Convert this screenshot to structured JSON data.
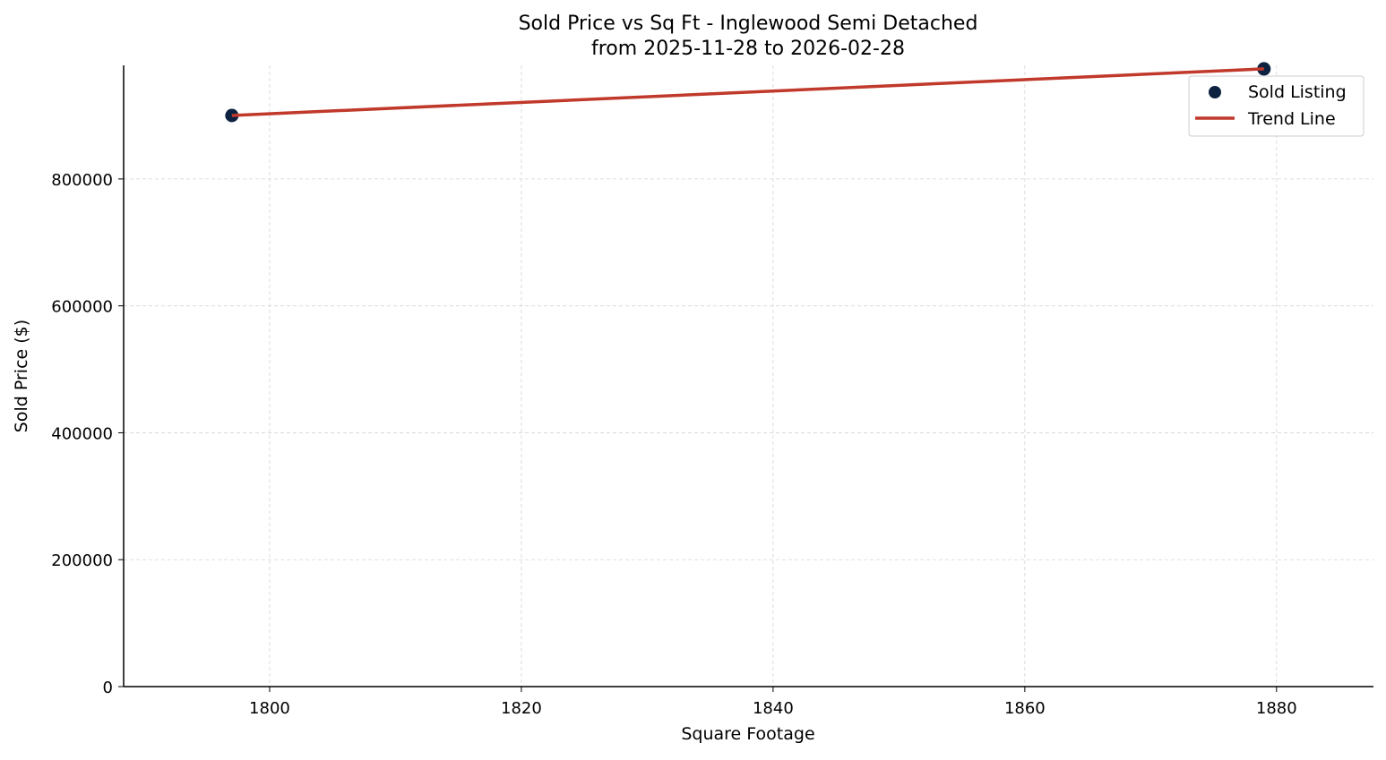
{
  "chart_data": {
    "type": "scatter",
    "title": "Sold Price vs Sq Ft - Inglewood Semi Detached",
    "subtitle": "from 2025-11-28 to 2026-02-28",
    "xlabel": "Square Footage",
    "ylabel": "Sold Price ($)",
    "xlim": [
      1788.4,
      1887.7
    ],
    "ylim": [
      0,
      979000
    ],
    "xticks": [
      1800,
      1820,
      1840,
      1860,
      1880
    ],
    "yticks": [
      0,
      200000,
      400000,
      600000,
      800000
    ],
    "grid": true,
    "legend_position": "top-right",
    "series": [
      {
        "name": "Sold Listing",
        "type": "scatter",
        "color": "#0d2240",
        "points": [
          {
            "x": 1797,
            "y": 900000
          },
          {
            "x": 1879,
            "y": 973500
          }
        ]
      },
      {
        "name": "Trend Line",
        "type": "line",
        "color": "#c0392b",
        "points": [
          {
            "x": 1797,
            "y": 900000
          },
          {
            "x": 1879,
            "y": 973500
          }
        ]
      }
    ]
  }
}
